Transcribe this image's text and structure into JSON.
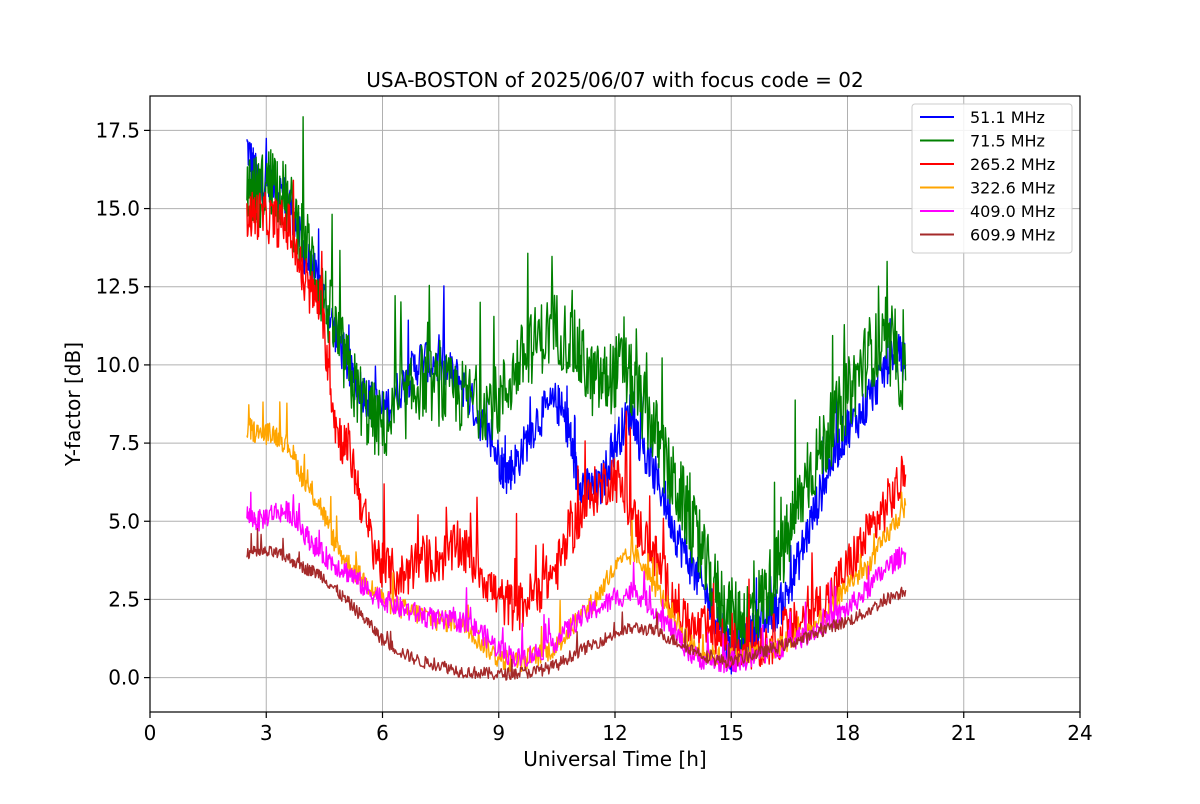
{
  "chart_data": {
    "type": "line",
    "title": "USA-BOSTON of 2025/06/07 with focus code = 02",
    "xlabel": "Universal Time [h]",
    "ylabel": "Y-factor [dB]",
    "xlim": [
      0,
      24
    ],
    "ylim": [
      -1.1,
      18.6
    ],
    "xticks": [
      0,
      3,
      6,
      9,
      12,
      15,
      18,
      21,
      24
    ],
    "xtick_labels": [
      "0",
      "3",
      "6",
      "9",
      "12",
      "15",
      "18",
      "21",
      "24"
    ],
    "yticks": [
      0.0,
      2.5,
      5.0,
      7.5,
      10.0,
      12.5,
      15.0,
      17.5
    ],
    "ytick_labels": [
      "0.0",
      "2.5",
      "5.0",
      "7.5",
      "10.0",
      "12.5",
      "15.0",
      "17.5"
    ],
    "grid": true,
    "legend_position": "top-right",
    "series": [
      {
        "name": " 51.1 MHz",
        "color": "#0000ff",
        "x": [
          2.5,
          2.8,
          3.2,
          3.6,
          4.0,
          4.4,
          4.8,
          5.2,
          5.6,
          6.0,
          6.6,
          7.0,
          7.5,
          8.0,
          8.5,
          9.0,
          9.2,
          9.5,
          10.0,
          10.5,
          10.8,
          11.0,
          11.3,
          11.6,
          12.0,
          12.4,
          12.8,
          13.2,
          13.6,
          14.0,
          14.4,
          14.8,
          15.0,
          15.3,
          15.6,
          16.0,
          16.4,
          16.8,
          17.2,
          17.6,
          18.0,
          18.4,
          18.8,
          19.2,
          19.5
        ],
        "y": [
          17.0,
          15.8,
          15.8,
          15.2,
          13.5,
          12.5,
          11.0,
          9.7,
          9.0,
          8.5,
          9.5,
          10.2,
          10.0,
          9.5,
          8.3,
          7.0,
          6.5,
          7.0,
          8.3,
          8.8,
          8.0,
          6.5,
          6.0,
          6.0,
          7.5,
          8.5,
          7.0,
          6.0,
          4.5,
          3.5,
          2.5,
          1.5,
          0.8,
          1.0,
          1.5,
          2.0,
          2.5,
          4.0,
          5.5,
          7.0,
          8.0,
          8.5,
          9.5,
          10.5,
          10.0
        ]
      },
      {
        "name": " 71.5 MHz",
        "color": "#008000",
        "x": [
          2.5,
          2.8,
          3.2,
          3.6,
          4.0,
          4.4,
          4.8,
          5.2,
          5.6,
          6.0,
          6.6,
          7.0,
          7.5,
          8.0,
          8.5,
          9.0,
          9.5,
          10.0,
          10.5,
          11.0,
          11.4,
          11.8,
          12.2,
          12.6,
          13.0,
          13.4,
          13.8,
          14.2,
          14.6,
          15.0,
          15.4,
          15.8,
          16.2,
          16.6,
          17.0,
          17.4,
          17.8,
          18.2,
          18.6,
          19.0,
          19.5
        ],
        "y": [
          15.8,
          15.5,
          16.0,
          15.0,
          14.0,
          12.5,
          11.0,
          9.5,
          8.5,
          8.0,
          8.8,
          9.5,
          9.2,
          9.0,
          8.8,
          8.8,
          10.0,
          10.8,
          11.2,
          10.5,
          9.5,
          9.5,
          10.0,
          9.0,
          8.0,
          6.5,
          5.5,
          4.0,
          2.8,
          2.0,
          2.0,
          2.5,
          3.5,
          5.0,
          6.5,
          7.5,
          8.5,
          9.5,
          10.5,
          10.5,
          9.5
        ]
      },
      {
        "name": "265.2 MHz",
        "color": "#ff0000",
        "x": [
          2.5,
          2.8,
          3.2,
          3.6,
          4.0,
          4.4,
          4.8,
          5.2,
          5.6,
          6.0,
          6.5,
          7.0,
          7.5,
          8.0,
          8.5,
          9.0,
          9.5,
          10.0,
          10.5,
          11.0,
          11.5,
          12.0,
          12.5,
          13.0,
          13.5,
          14.0,
          14.5,
          15.0,
          15.5,
          16.0,
          16.5,
          17.0,
          17.5,
          18.0,
          18.5,
          19.0,
          19.5
        ],
        "y": [
          14.8,
          14.8,
          14.6,
          14.4,
          12.5,
          12.0,
          8.0,
          7.0,
          4.8,
          3.5,
          3.2,
          3.8,
          3.8,
          4.2,
          3.5,
          2.5,
          2.2,
          2.8,
          3.5,
          5.0,
          6.0,
          6.5,
          5.0,
          4.0,
          2.5,
          1.5,
          1.5,
          1.0,
          1.0,
          1.2,
          1.5,
          2.0,
          2.5,
          3.5,
          4.5,
          5.5,
          6.5
        ]
      },
      {
        "name": "322.6 MHz",
        "color": "#ffa500",
        "x": [
          2.5,
          2.8,
          3.2,
          3.6,
          4.0,
          4.4,
          4.8,
          5.2,
          5.6,
          6.0,
          6.5,
          7.0,
          7.5,
          8.0,
          8.5,
          9.0,
          9.5,
          10.0,
          10.5,
          11.0,
          11.5,
          12.0,
          12.5,
          13.0,
          13.5,
          14.0,
          14.5,
          15.0,
          15.5,
          16.0,
          16.5,
          17.0,
          17.5,
          18.0,
          18.5,
          19.0,
          19.5
        ],
        "y": [
          8.0,
          7.8,
          7.8,
          7.4,
          6.2,
          5.5,
          4.2,
          3.5,
          3.0,
          2.5,
          2.2,
          2.0,
          1.8,
          1.8,
          1.2,
          0.6,
          0.5,
          0.7,
          1.0,
          1.8,
          2.5,
          3.5,
          4.0,
          3.0,
          2.0,
          1.0,
          0.7,
          0.6,
          0.7,
          0.9,
          1.2,
          1.5,
          2.0,
          3.0,
          3.5,
          4.5,
          5.5
        ]
      },
      {
        "name": "409.0 MHz",
        "color": "#ff00ff",
        "x": [
          2.5,
          2.8,
          3.2,
          3.6,
          4.0,
          4.4,
          4.8,
          5.2,
          5.6,
          6.0,
          6.5,
          7.0,
          7.5,
          8.0,
          8.5,
          9.0,
          9.5,
          10.0,
          10.5,
          11.0,
          11.5,
          12.0,
          12.5,
          13.0,
          13.5,
          14.0,
          14.5,
          15.0,
          15.5,
          16.0,
          16.5,
          17.0,
          17.5,
          18.0,
          18.5,
          19.0,
          19.5
        ],
        "y": [
          5.2,
          5.0,
          5.3,
          5.3,
          4.6,
          4.0,
          3.6,
          3.3,
          2.8,
          2.5,
          2.2,
          2.0,
          1.8,
          1.8,
          1.5,
          0.9,
          0.6,
          0.8,
          1.2,
          1.8,
          2.2,
          2.5,
          2.8,
          2.2,
          1.5,
          0.7,
          0.5,
          0.5,
          0.6,
          0.8,
          1.1,
          1.4,
          1.8,
          2.2,
          2.8,
          3.5,
          4.0
        ]
      },
      {
        "name": "609.9 MHz",
        "color": "#a52a2a",
        "x": [
          2.5,
          2.8,
          3.2,
          3.6,
          4.0,
          4.4,
          4.8,
          5.2,
          5.6,
          6.0,
          6.5,
          7.0,
          7.5,
          8.0,
          8.5,
          9.0,
          9.5,
          10.0,
          10.5,
          11.0,
          11.5,
          12.0,
          12.5,
          13.0,
          13.5,
          14.0,
          14.5,
          15.0,
          15.5,
          16.0,
          16.5,
          17.0,
          17.5,
          18.0,
          18.5,
          19.0,
          19.5
        ],
        "y": [
          4.0,
          4.0,
          4.0,
          3.8,
          3.5,
          3.3,
          2.8,
          2.3,
          1.8,
          1.2,
          0.8,
          0.5,
          0.4,
          0.2,
          0.15,
          0.1,
          0.15,
          0.2,
          0.4,
          0.8,
          1.1,
          1.4,
          1.6,
          1.5,
          1.2,
          0.9,
          0.6,
          0.5,
          0.7,
          0.9,
          1.1,
          1.3,
          1.6,
          1.8,
          2.1,
          2.5,
          2.8
        ]
      }
    ]
  }
}
